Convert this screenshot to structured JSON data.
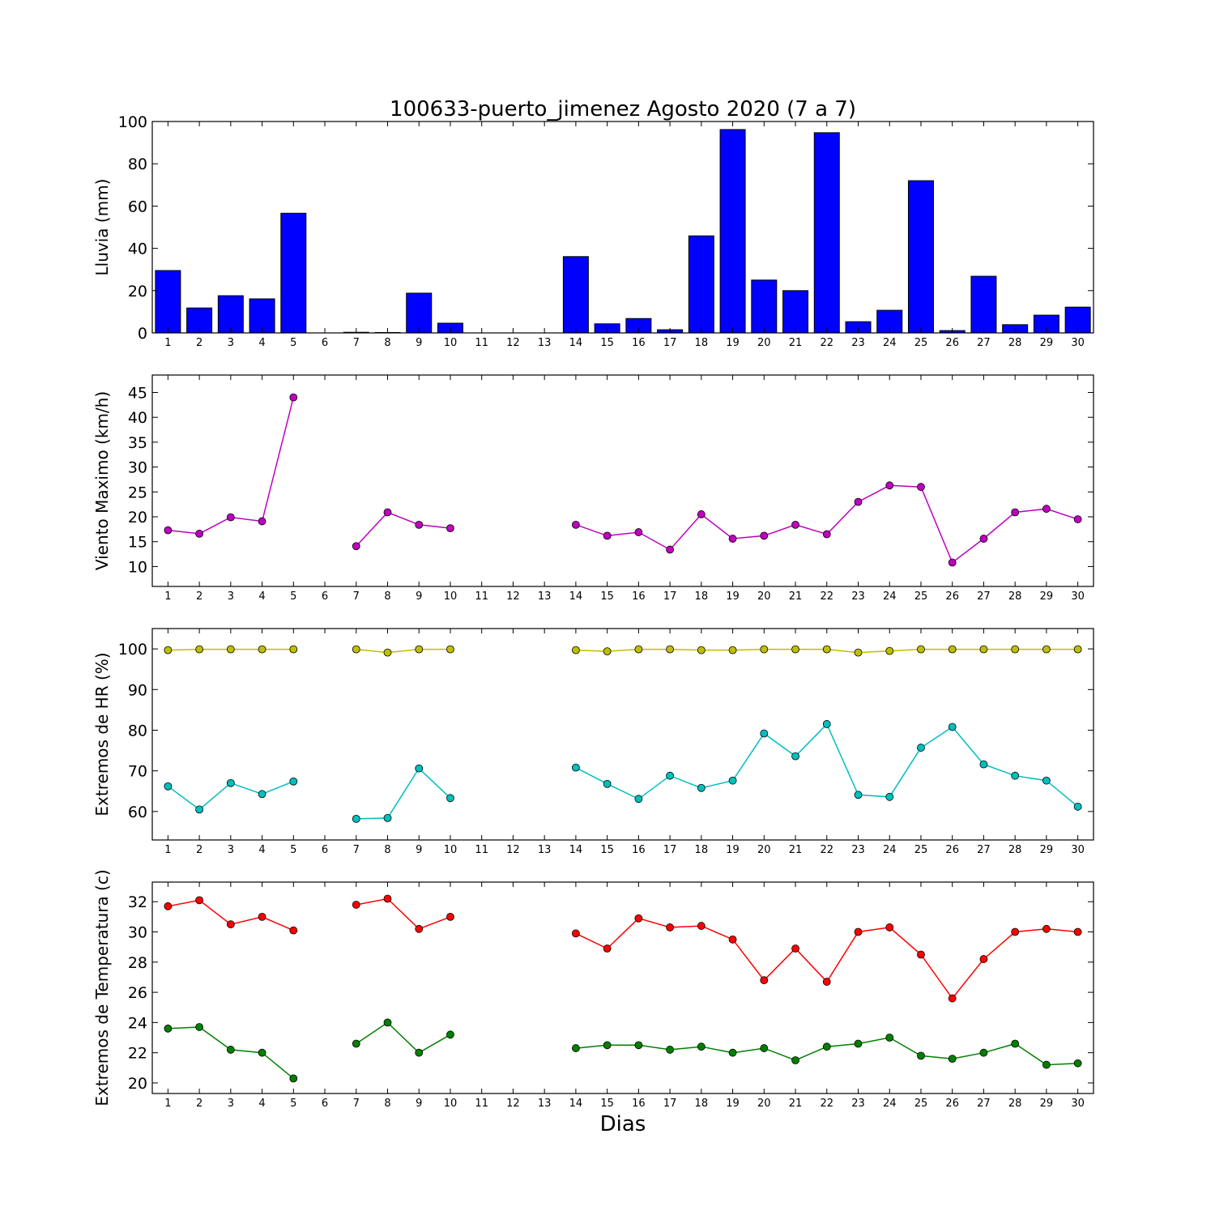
{
  "title": "100633-puerto_jimenez Agosto 2020  (7 a 7)",
  "xlabel": "Dias",
  "colors": {
    "bar": "#0000ff",
    "wind": "#bf00bf",
    "hr_max": "#bfbf00",
    "hr_min": "#00bfbf",
    "temp_max": "#ff0000",
    "temp_min": "#008000"
  },
  "chart_data": [
    {
      "type": "bar",
      "ylabel": "Lluvia (mm)",
      "ylim": [
        0,
        100
      ],
      "yticks": [
        0,
        20,
        40,
        60,
        80,
        100
      ],
      "categories": [
        "1",
        "2",
        "3",
        "4",
        "5",
        "6",
        "7",
        "8",
        "9",
        "10",
        "11",
        "12",
        "13",
        "14",
        "15",
        "16",
        "17",
        "18",
        "19",
        "20",
        "21",
        "22",
        "23",
        "24",
        "25",
        "26",
        "27",
        "28",
        "29",
        "30"
      ],
      "values": [
        29.5,
        11.8,
        17.6,
        16.1,
        56.6,
        0,
        0.3,
        0.2,
        18.8,
        4.6,
        0,
        0,
        0,
        36.1,
        4.3,
        6.8,
        1.5,
        45.9,
        96.2,
        25.0,
        20.0,
        94.7,
        5.3,
        10.7,
        72.0,
        1.1,
        26.8,
        3.9,
        8.4,
        12.2
      ]
    },
    {
      "type": "line",
      "ylabel": "Viento Maximo (km/h)",
      "ylim": [
        6,
        48.5
      ],
      "yticks": [
        10,
        15,
        20,
        25,
        30,
        35,
        40,
        45
      ],
      "x": [
        1,
        2,
        3,
        4,
        5,
        6,
        7,
        8,
        9,
        10,
        11,
        12,
        13,
        14,
        15,
        16,
        17,
        18,
        19,
        20,
        21,
        22,
        23,
        24,
        25,
        26,
        27,
        28,
        29,
        30
      ],
      "series": [
        {
          "color": "#bf00bf",
          "values": [
            17.3,
            16.6,
            19.9,
            19.1,
            44.0,
            null,
            14.1,
            20.9,
            18.4,
            17.7,
            null,
            null,
            null,
            18.4,
            16.2,
            16.9,
            13.4,
            20.5,
            15.6,
            16.2,
            18.4,
            16.5,
            23.0,
            26.3,
            26.0,
            10.8,
            15.6,
            20.9,
            21.6,
            19.5
          ]
        }
      ]
    },
    {
      "type": "line",
      "ylabel": "Extremos de HR (%)",
      "ylim": [
        53,
        105
      ],
      "yticks": [
        60,
        70,
        80,
        90,
        100
      ],
      "x": [
        1,
        2,
        3,
        4,
        5,
        6,
        7,
        8,
        9,
        10,
        11,
        12,
        13,
        14,
        15,
        16,
        17,
        18,
        19,
        20,
        21,
        22,
        23,
        24,
        25,
        26,
        27,
        28,
        29,
        30
      ],
      "series": [
        {
          "color": "#bfbf00",
          "values": [
            99.7,
            99.9,
            99.9,
            99.9,
            99.9,
            null,
            99.9,
            99.1,
            99.9,
            99.9,
            null,
            null,
            null,
            99.7,
            99.4,
            99.9,
            99.9,
            99.7,
            99.7,
            99.9,
            99.9,
            99.9,
            99.1,
            99.5,
            99.9,
            99.9,
            99.9,
            99.9,
            99.9,
            99.9
          ]
        },
        {
          "color": "#00bfbf",
          "values": [
            66.2,
            60.5,
            67.0,
            64.3,
            67.4,
            null,
            58.2,
            58.4,
            70.6,
            63.3,
            null,
            null,
            null,
            70.8,
            66.8,
            63.1,
            68.8,
            65.8,
            67.6,
            79.2,
            73.6,
            81.5,
            64.1,
            63.6,
            75.7,
            80.8,
            71.6,
            68.8,
            67.6,
            61.2
          ]
        }
      ]
    },
    {
      "type": "line",
      "ylabel": "Extremos de Temperatura (c)",
      "ylim": [
        19.3,
        33.3
      ],
      "yticks": [
        20,
        22,
        24,
        26,
        28,
        30,
        32
      ],
      "x": [
        1,
        2,
        3,
        4,
        5,
        6,
        7,
        8,
        9,
        10,
        11,
        12,
        13,
        14,
        15,
        16,
        17,
        18,
        19,
        20,
        21,
        22,
        23,
        24,
        25,
        26,
        27,
        28,
        29,
        30
      ],
      "series": [
        {
          "color": "#ff0000",
          "values": [
            31.7,
            32.1,
            30.5,
            31.0,
            30.1,
            null,
            31.8,
            32.2,
            30.2,
            31.0,
            null,
            null,
            null,
            29.9,
            28.9,
            30.9,
            30.3,
            30.4,
            29.5,
            26.8,
            28.9,
            26.7,
            30.0,
            30.3,
            28.5,
            25.6,
            28.2,
            30.0,
            30.2,
            30.0
          ]
        },
        {
          "color": "#008000",
          "values": [
            23.6,
            23.7,
            22.2,
            22.0,
            20.3,
            null,
            22.6,
            24.0,
            22.0,
            23.2,
            null,
            null,
            null,
            22.3,
            22.5,
            22.5,
            22.2,
            22.4,
            22.0,
            22.3,
            21.5,
            22.4,
            22.6,
            23.0,
            21.8,
            21.6,
            22.0,
            22.6,
            21.2,
            21.3
          ]
        }
      ]
    }
  ]
}
